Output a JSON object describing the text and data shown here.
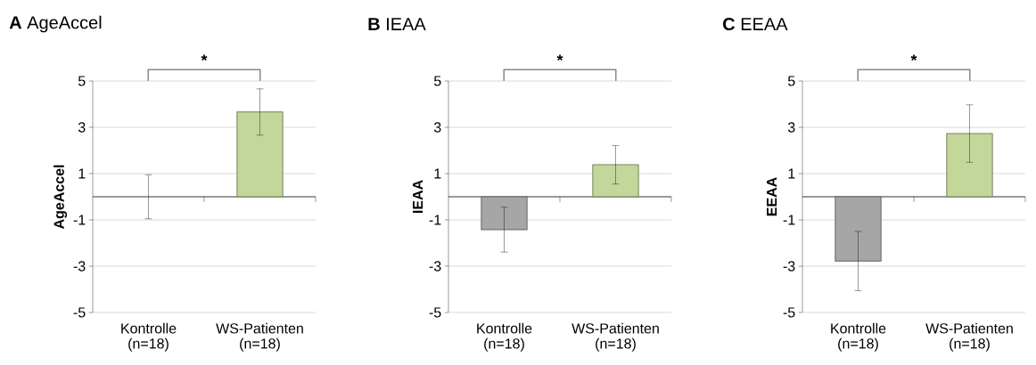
{
  "chart_data": [
    {
      "type": "bar",
      "title": "**A** AgeAccel",
      "ylabel": "AgeAccel",
      "categories": [
        "Kontrolle (n=18)",
        "WS-Patienten (n=18)"
      ],
      "values": [
        0,
        3.66
      ],
      "errors": [
        0.95,
        1.0
      ],
      "colors": [
        "#a6a6a6",
        "#c4d79b"
      ],
      "ylim": [
        -5,
        5
      ],
      "yticks": [
        -5,
        -3,
        -1,
        1,
        3,
        5
      ],
      "grid": "y",
      "annotations": [
        "*"
      ]
    },
    {
      "type": "bar",
      "title": "**B** IEAA",
      "ylabel": "IEAA",
      "categories": [
        "Kontrolle (n=18)",
        "WS-Patienten (n=18)"
      ],
      "values": [
        -1.42,
        1.38
      ],
      "errors": [
        0.97,
        0.83
      ],
      "colors": [
        "#a6a6a6",
        "#c4d79b"
      ],
      "ylim": [
        -5,
        5
      ],
      "yticks": [
        -5,
        -3,
        -1,
        1,
        3,
        5
      ],
      "grid": "y",
      "annotations": [
        "*"
      ]
    },
    {
      "type": "bar",
      "title": "**C** EEAA",
      "ylabel": "EEAA",
      "categories": [
        "Kontrolle (n=18)",
        "WS-Patienten (n=18)"
      ],
      "values": [
        -2.78,
        2.73
      ],
      "errors": [
        1.28,
        1.24
      ],
      "colors": [
        "#a6a6a6",
        "#c4d79b"
      ],
      "ylim": [
        -5,
        5
      ],
      "yticks": [
        -5,
        -3,
        -1,
        1,
        3,
        5
      ],
      "grid": "y",
      "annotations": [
        "*"
      ]
    }
  ]
}
